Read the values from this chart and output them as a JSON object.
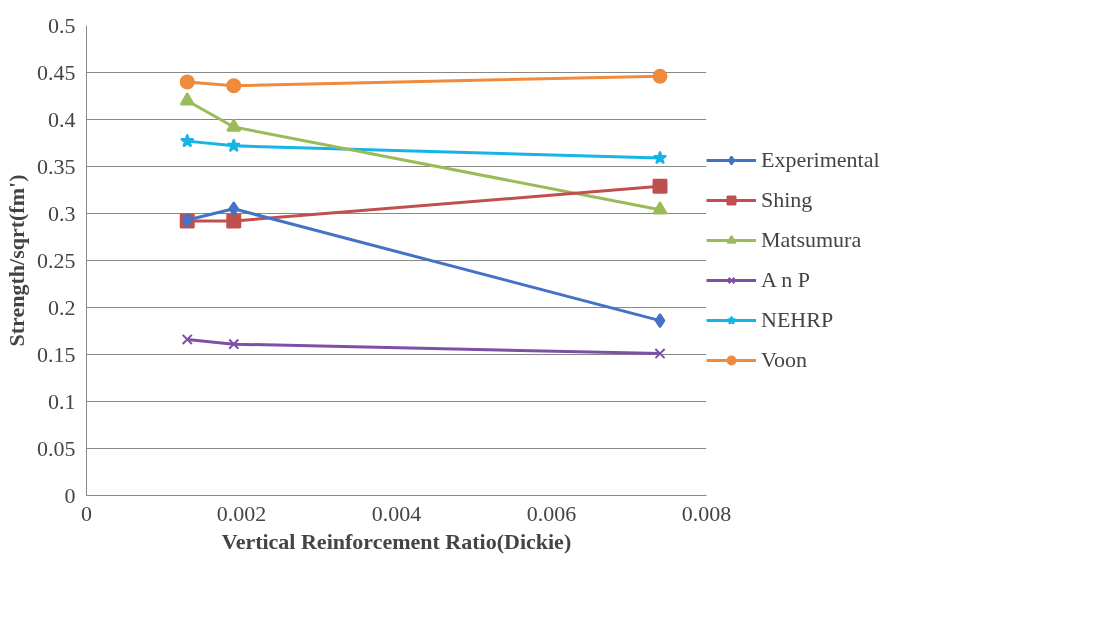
{
  "chart_data": {
    "type": "line",
    "xlabel": "Vertical Reinforcement Ratio(Dickie)",
    "ylabel": "Strength/sqrt(fm')",
    "xlim": [
      0,
      0.008
    ],
    "xticks": [
      0,
      0.002,
      0.004,
      0.006,
      0.008
    ],
    "ylim": [
      0,
      0.5
    ],
    "yticks": [
      0,
      0.05,
      0.1,
      0.15,
      0.2,
      0.25,
      0.3,
      0.35,
      0.4,
      0.45,
      0.5
    ],
    "grid": "y",
    "legend": "right",
    "x": [
      0.0013,
      0.0019,
      0.0074
    ],
    "series": [
      {
        "name": "Experimental",
        "color": "#4472c4",
        "marker": "diamond",
        "values": [
          0.293,
          0.305,
          0.186
        ]
      },
      {
        "name": "Shing",
        "color": "#c0504d",
        "marker": "square",
        "values": [
          0.292,
          0.292,
          0.329
        ]
      },
      {
        "name": "Matsumura",
        "color": "#9bbb59",
        "marker": "triangle",
        "values": [
          0.42,
          0.392,
          0.304
        ]
      },
      {
        "name": "A n P",
        "color": "#7f4fa8",
        "marker": "cross",
        "values": [
          0.166,
          0.161,
          0.151
        ]
      },
      {
        "name": "NEHRP",
        "color": "#16b4e6",
        "marker": "star",
        "values": [
          0.377,
          0.372,
          0.359
        ]
      },
      {
        "name": "Voon",
        "color": "#f08a3c",
        "marker": "circle",
        "values": [
          0.44,
          0.436,
          0.446
        ]
      }
    ]
  }
}
